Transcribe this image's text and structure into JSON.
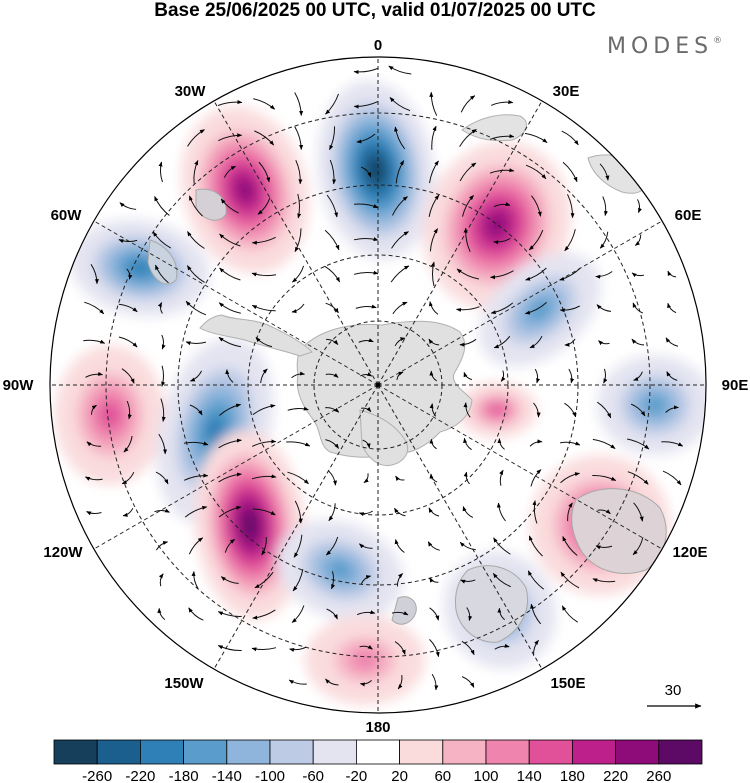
{
  "title": "Base 25/06/2025 00 UTC, valid 01/07/2025 00 UTC",
  "brand": "MODES",
  "brand_mark": "®",
  "map": {
    "projection": "south-polar-stereographic",
    "longitude_labels": [
      "0",
      "30E",
      "60E",
      "90E",
      "120E",
      "150E",
      "180",
      "150W",
      "120W",
      "90W",
      "60W",
      "30W"
    ],
    "reference_vector": "30"
  },
  "anomaly_cells": [
    {
      "sign": "neg",
      "level": 260,
      "region": "0"
    },
    {
      "sign": "pos",
      "level": 220,
      "region": "30E-50E"
    },
    {
      "sign": "pos",
      "level": 220,
      "region": "30W"
    },
    {
      "sign": "neg",
      "level": 180,
      "region": "60W"
    },
    {
      "sign": "neg",
      "level": 140,
      "region": "60E-75E"
    },
    {
      "sign": "neg",
      "level": 140,
      "region": "90E"
    },
    {
      "sign": "pos",
      "level": 140,
      "region": "90W"
    },
    {
      "sign": "neg",
      "level": 180,
      "region": "100W"
    },
    {
      "sign": "pos",
      "level": 260,
      "region": "120W"
    },
    {
      "sign": "neg",
      "level": 140,
      "region": "150W-165W"
    },
    {
      "sign": "pos",
      "level": 100,
      "region": "180"
    },
    {
      "sign": "neg",
      "level": 140,
      "region": "150E"
    },
    {
      "sign": "pos",
      "level": 180,
      "region": "120E"
    },
    {
      "sign": "pos",
      "level": 140,
      "region": "100E"
    }
  ],
  "colorbar": {
    "ticks": [
      "-260",
      "-220",
      "-180",
      "-140",
      "-100",
      "-60",
      "-20",
      "20",
      "60",
      "100",
      "140",
      "180",
      "220",
      "260"
    ],
    "colors": [
      "#163f5c",
      "#1b5f8e",
      "#2f80b7",
      "#5a9dcc",
      "#8fb5dc",
      "#bdcbe5",
      "#e4e4f1",
      "#ffffff",
      "#fadcdd",
      "#f5b3c4",
      "#ef85ae",
      "#e1519a",
      "#bd208a",
      "#8e0c7a",
      "#5c0a66"
    ]
  }
}
